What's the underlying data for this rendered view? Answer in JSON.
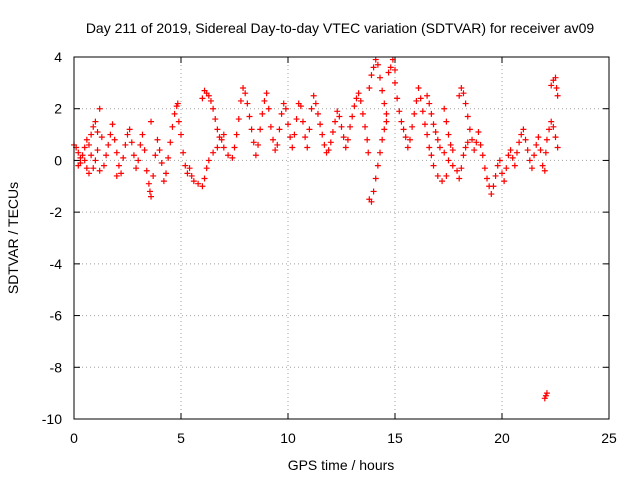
{
  "chart_data": {
    "type": "scatter",
    "title": "Day 211 of 2019, Sidereal Day-to-day VTEC variation (SDTVAR) for receiver av09",
    "xlabel": "GPS time / hours",
    "ylabel": "SDTVAR / TECUs",
    "xlim": [
      0,
      25
    ],
    "ylim": [
      -10,
      4
    ],
    "xticks": [
      "0",
      "5",
      "10",
      "15",
      "20",
      "25"
    ],
    "yticks": [
      "4",
      "2",
      "0",
      "-2",
      "-4",
      "-6",
      "-8",
      "-10"
    ],
    "grid": true,
    "marker": "plus",
    "color": "#ff0000",
    "series": [
      {
        "name": "SDTVAR",
        "points": [
          [
            0.0,
            0.6
          ],
          [
            0.1,
            0.5
          ],
          [
            0.2,
            0.3
          ],
          [
            0.3,
            0.1
          ],
          [
            0.2,
            -0.2
          ],
          [
            0.3,
            -0.1
          ],
          [
            0.4,
            0.2
          ],
          [
            0.5,
            0.5
          ],
          [
            0.6,
            0.8
          ],
          [
            0.7,
            0.6
          ],
          [
            0.8,
            0.2
          ],
          [
            0.9,
            -0.3
          ],
          [
            0.7,
            -0.5
          ],
          [
            0.6,
            -0.3
          ],
          [
            0.5,
            0.0
          ],
          [
            0.8,
            1.0
          ],
          [
            0.9,
            1.3
          ],
          [
            1.0,
            1.5
          ],
          [
            1.1,
            1.1
          ],
          [
            1.2,
            2.0
          ],
          [
            1.3,
            0.9
          ],
          [
            1.1,
            0.4
          ],
          [
            1.0,
            0.0
          ],
          [
            1.2,
            -0.4
          ],
          [
            1.4,
            -0.2
          ],
          [
            1.5,
            0.2
          ],
          [
            1.6,
            0.6
          ],
          [
            1.7,
            1.0
          ],
          [
            1.8,
            1.4
          ],
          [
            1.9,
            0.8
          ],
          [
            2.0,
            0.3
          ],
          [
            2.1,
            -0.2
          ],
          [
            2.0,
            -0.6
          ],
          [
            2.2,
            -0.5
          ],
          [
            2.3,
            0.1
          ],
          [
            2.4,
            0.6
          ],
          [
            2.5,
            1.0
          ],
          [
            2.6,
            1.2
          ],
          [
            2.7,
            0.7
          ],
          [
            2.8,
            0.2
          ],
          [
            2.9,
            -0.3
          ],
          [
            3.0,
            0.0
          ],
          [
            3.1,
            0.6
          ],
          [
            3.2,
            1.0
          ],
          [
            3.3,
            0.4
          ],
          [
            3.4,
            -0.4
          ],
          [
            3.5,
            -0.9
          ],
          [
            3.6,
            -1.4
          ],
          [
            3.55,
            -1.2
          ],
          [
            3.6,
            1.5
          ],
          [
            3.7,
            -0.6
          ],
          [
            3.8,
            0.2
          ],
          [
            3.9,
            0.8
          ],
          [
            4.0,
            0.4
          ],
          [
            4.1,
            -0.1
          ],
          [
            4.2,
            -0.8
          ],
          [
            4.3,
            -0.5
          ],
          [
            4.4,
            0.1
          ],
          [
            4.5,
            0.7
          ],
          [
            4.6,
            1.3
          ],
          [
            4.7,
            1.8
          ],
          [
            4.8,
            2.1
          ],
          [
            4.85,
            2.2
          ],
          [
            4.9,
            1.5
          ],
          [
            5.0,
            1.0
          ],
          [
            5.1,
            0.3
          ],
          [
            5.2,
            -0.2
          ],
          [
            5.3,
            -0.5
          ],
          [
            5.4,
            -0.3
          ],
          [
            5.5,
            -0.6
          ],
          [
            5.6,
            -0.8
          ],
          [
            5.8,
            -0.9
          ],
          [
            6.0,
            -1.0
          ],
          [
            6.1,
            -0.7
          ],
          [
            6.2,
            -0.3
          ],
          [
            6.3,
            0.0
          ],
          [
            6.5,
            0.3
          ],
          [
            6.7,
            0.5
          ],
          [
            6.9,
            0.8
          ],
          [
            7.0,
            1.0
          ],
          [
            6.0,
            2.4
          ],
          [
            6.1,
            2.7
          ],
          [
            6.2,
            2.6
          ],
          [
            6.3,
            2.5
          ],
          [
            6.4,
            2.3
          ],
          [
            6.5,
            2.0
          ],
          [
            6.6,
            1.6
          ],
          [
            6.7,
            1.2
          ],
          [
            6.8,
            0.9
          ],
          [
            7.0,
            0.5
          ],
          [
            7.2,
            0.2
          ],
          [
            7.4,
            0.1
          ],
          [
            7.5,
            0.5
          ],
          [
            7.6,
            1.0
          ],
          [
            7.7,
            1.6
          ],
          [
            7.8,
            2.3
          ],
          [
            7.9,
            2.8
          ],
          [
            8.0,
            2.6
          ],
          [
            8.1,
            2.2
          ],
          [
            8.2,
            1.7
          ],
          [
            8.3,
            1.2
          ],
          [
            8.4,
            0.7
          ],
          [
            8.5,
            0.2
          ],
          [
            8.6,
            0.6
          ],
          [
            8.7,
            1.2
          ],
          [
            8.8,
            1.8
          ],
          [
            8.9,
            2.3
          ],
          [
            9.0,
            2.6
          ],
          [
            9.1,
            2.0
          ],
          [
            9.2,
            1.3
          ],
          [
            9.3,
            0.8
          ],
          [
            9.4,
            0.4
          ],
          [
            9.5,
            0.6
          ],
          [
            9.6,
            1.2
          ],
          [
            9.7,
            1.8
          ],
          [
            9.8,
            2.2
          ],
          [
            9.9,
            2.0
          ],
          [
            10.0,
            1.4
          ],
          [
            10.1,
            0.9
          ],
          [
            10.2,
            0.5
          ],
          [
            10.3,
            1.0
          ],
          [
            10.4,
            1.6
          ],
          [
            10.5,
            2.2
          ],
          [
            10.6,
            2.1
          ],
          [
            10.7,
            1.5
          ],
          [
            10.8,
            0.9
          ],
          [
            10.9,
            0.5
          ],
          [
            11.0,
            1.2
          ],
          [
            11.1,
            2.0
          ],
          [
            11.2,
            2.5
          ],
          [
            11.3,
            2.2
          ],
          [
            11.4,
            1.8
          ],
          [
            11.5,
            1.4
          ],
          [
            11.6,
            1.0
          ],
          [
            11.7,
            0.6
          ],
          [
            11.8,
            0.3
          ],
          [
            11.9,
            0.4
          ],
          [
            12.0,
            0.7
          ],
          [
            12.1,
            1.1
          ],
          [
            12.2,
            1.5
          ],
          [
            12.3,
            1.9
          ],
          [
            12.4,
            1.7
          ],
          [
            12.5,
            1.3
          ],
          [
            12.6,
            0.9
          ],
          [
            12.7,
            0.5
          ],
          [
            12.8,
            0.8
          ],
          [
            12.9,
            1.3
          ],
          [
            13.0,
            1.7
          ],
          [
            13.1,
            2.1
          ],
          [
            13.2,
            2.4
          ],
          [
            13.3,
            2.6
          ],
          [
            13.4,
            2.3
          ],
          [
            13.5,
            1.8
          ],
          [
            13.6,
            1.3
          ],
          [
            13.7,
            0.8
          ],
          [
            13.75,
            0.3
          ],
          [
            13.8,
            -1.5
          ],
          [
            13.9,
            -1.6
          ],
          [
            14.0,
            -1.2
          ],
          [
            14.1,
            -0.7
          ],
          [
            14.2,
            -0.2
          ],
          [
            14.3,
            0.3
          ],
          [
            14.4,
            0.8
          ],
          [
            14.5,
            1.2
          ],
          [
            14.6,
            1.5
          ],
          [
            13.8,
            2.8
          ],
          [
            13.9,
            3.3
          ],
          [
            14.0,
            3.6
          ],
          [
            14.1,
            3.9
          ],
          [
            14.2,
            3.7
          ],
          [
            14.3,
            3.2
          ],
          [
            14.4,
            2.7
          ],
          [
            14.5,
            2.2
          ],
          [
            14.6,
            1.8
          ],
          [
            14.7,
            3.4
          ],
          [
            14.8,
            3.6
          ],
          [
            14.9,
            3.9
          ],
          [
            15.0,
            3.5
          ],
          [
            15.0,
            3.0
          ],
          [
            15.1,
            2.4
          ],
          [
            15.2,
            1.9
          ],
          [
            15.3,
            1.5
          ],
          [
            15.4,
            1.2
          ],
          [
            15.5,
            0.9
          ],
          [
            15.6,
            0.5
          ],
          [
            15.7,
            0.8
          ],
          [
            15.8,
            1.3
          ],
          [
            15.9,
            1.8
          ],
          [
            16.0,
            2.3
          ],
          [
            16.1,
            2.8
          ],
          [
            16.2,
            2.4
          ],
          [
            16.3,
            1.9
          ],
          [
            16.4,
            1.4
          ],
          [
            16.5,
            1.0
          ],
          [
            16.6,
            0.5
          ],
          [
            16.7,
            0.2
          ],
          [
            16.8,
            -0.2
          ],
          [
            17.0,
            -0.6
          ],
          [
            17.2,
            -0.8
          ],
          [
            17.4,
            -0.6
          ],
          [
            16.5,
            2.5
          ],
          [
            16.6,
            2.2
          ],
          [
            16.7,
            1.8
          ],
          [
            16.8,
            1.4
          ],
          [
            16.9,
            1.1
          ],
          [
            17.0,
            0.8
          ],
          [
            17.1,
            0.5
          ],
          [
            17.3,
            0.3
          ],
          [
            17.5,
            0.0
          ],
          [
            17.7,
            -0.2
          ],
          [
            17.9,
            -0.4
          ],
          [
            18.0,
            -0.7
          ],
          [
            18.1,
            -0.3
          ],
          [
            18.2,
            0.2
          ],
          [
            18.3,
            0.5
          ],
          [
            18.4,
            0.7
          ],
          [
            17.3,
            2.0
          ],
          [
            17.4,
            1.5
          ],
          [
            17.5,
            1.0
          ],
          [
            17.6,
            0.6
          ],
          [
            17.7,
            0.4
          ],
          [
            18.0,
            2.5
          ],
          [
            18.1,
            2.8
          ],
          [
            18.2,
            2.6
          ],
          [
            18.3,
            2.2
          ],
          [
            18.4,
            1.7
          ],
          [
            18.5,
            1.2
          ],
          [
            18.6,
            0.8
          ],
          [
            18.7,
            0.4
          ],
          [
            18.8,
            0.7
          ],
          [
            18.9,
            1.1
          ],
          [
            19.0,
            0.6
          ],
          [
            19.1,
            0.2
          ],
          [
            19.2,
            -0.3
          ],
          [
            19.3,
            -0.7
          ],
          [
            19.4,
            -1.0
          ],
          [
            19.5,
            -1.3
          ],
          [
            19.6,
            -1.0
          ],
          [
            19.7,
            -0.6
          ],
          [
            19.8,
            -0.2
          ],
          [
            19.9,
            0.0
          ],
          [
            20.0,
            -0.5
          ],
          [
            20.1,
            -0.8
          ],
          [
            20.2,
            -0.3
          ],
          [
            20.3,
            0.2
          ],
          [
            20.4,
            0.4
          ],
          [
            20.5,
            0.1
          ],
          [
            20.6,
            -0.2
          ],
          [
            20.7,
            0.3
          ],
          [
            20.8,
            0.7
          ],
          [
            20.9,
            1.0
          ],
          [
            21.0,
            1.2
          ],
          [
            21.1,
            0.8
          ],
          [
            21.2,
            0.4
          ],
          [
            21.3,
            0.0
          ],
          [
            21.4,
            -0.3
          ],
          [
            21.5,
            0.2
          ],
          [
            21.6,
            0.6
          ],
          [
            21.7,
            0.9
          ],
          [
            21.8,
            0.4
          ],
          [
            21.9,
            -0.2
          ],
          [
            22.0,
            -0.4
          ],
          [
            22.05,
            0.3
          ],
          [
            22.1,
            0.8
          ],
          [
            22.2,
            1.2
          ],
          [
            22.3,
            1.5
          ],
          [
            22.4,
            1.3
          ],
          [
            22.5,
            0.9
          ],
          [
            22.6,
            0.5
          ],
          [
            22.3,
            2.9
          ],
          [
            22.4,
            3.1
          ],
          [
            22.5,
            3.2
          ],
          [
            22.55,
            2.8
          ],
          [
            22.6,
            2.5
          ],
          [
            22.0,
            -9.2
          ],
          [
            22.05,
            -9.1
          ],
          [
            22.1,
            -9.0
          ]
        ]
      }
    ]
  }
}
